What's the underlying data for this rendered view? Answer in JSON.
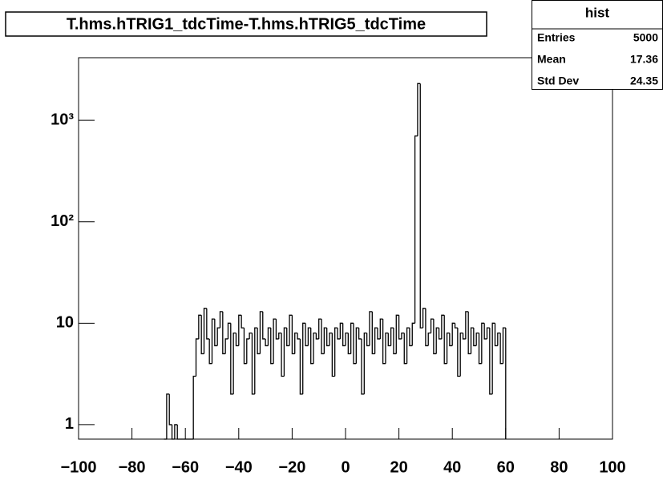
{
  "chart_data": {
    "type": "histogram",
    "title": "T.hms.hTRIG1_tdcTime-T.hms.hTRIG5_tdcTime",
    "bins": [
      -68,
      -67,
      -66,
      -65,
      -64,
      -63,
      -62,
      -61,
      -60,
      -59,
      -58,
      -57,
      -56,
      -55,
      -54,
      -53,
      -52,
      -51,
      -50,
      -49,
      -48,
      -47,
      -46,
      -45,
      -44,
      -43,
      -42,
      -41,
      -40,
      -39,
      -38,
      -37,
      -36,
      -35,
      -34,
      -33,
      -32,
      -31,
      -30,
      -29,
      -28,
      -27,
      -26,
      -25,
      -24,
      -23,
      -22,
      -21,
      -20,
      -19,
      -18,
      -17,
      -16,
      -15,
      -14,
      -13,
      -12,
      -11,
      -10,
      -9,
      -8,
      -7,
      -6,
      -5,
      -4,
      -3,
      -2,
      -1,
      0,
      1,
      2,
      3,
      4,
      5,
      6,
      7,
      8,
      9,
      10,
      11,
      12,
      13,
      14,
      15,
      16,
      17,
      18,
      19,
      20,
      21,
      22,
      23,
      24,
      25,
      26,
      27,
      28,
      29,
      30,
      31,
      32,
      33,
      34,
      35,
      36,
      37,
      38,
      39,
      40,
      41,
      42,
      43,
      44,
      45,
      46,
      47,
      48,
      49,
      50,
      51,
      52,
      53,
      54,
      55,
      56,
      57,
      58,
      59,
      60
    ],
    "values": [
      0,
      2,
      1,
      0,
      1,
      0,
      0,
      0,
      0,
      0,
      0,
      3,
      7,
      12,
      5,
      14,
      7,
      4,
      11,
      6,
      9,
      13,
      5,
      7,
      10,
      2,
      8,
      6,
      12,
      9,
      4,
      7,
      8,
      2,
      9,
      5,
      13,
      7,
      6,
      9,
      4,
      11,
      7,
      8,
      3,
      9,
      6,
      12,
      5,
      8,
      7,
      2,
      10,
      6,
      9,
      4,
      8,
      7,
      11,
      5,
      9,
      6,
      8,
      3,
      9,
      7,
      10,
      6,
      8,
      5,
      10,
      4,
      9,
      7,
      2,
      8,
      6,
      13,
      5,
      9,
      7,
      11,
      4,
      8,
      6,
      9,
      5,
      12,
      7,
      8,
      4,
      9,
      6,
      10,
      700,
      2300,
      9,
      14,
      6,
      8,
      11,
      5,
      9,
      7,
      12,
      4,
      8,
      6,
      10,
      9,
      3,
      8,
      7,
      13,
      5,
      9,
      6,
      8,
      4,
      10,
      7,
      9,
      2,
      10,
      6,
      8,
      4,
      9
    ],
    "color": "#000000",
    "xlim": [
      -100,
      100
    ],
    "ylim": [
      0.72,
      4140
    ],
    "log_y": true,
    "xticks": [
      {
        "value": -100,
        "label": "−100"
      },
      {
        "value": -80,
        "label": "−80"
      },
      {
        "value": -60,
        "label": "−60"
      },
      {
        "value": -40,
        "label": "−40"
      },
      {
        "value": -20,
        "label": "−20"
      },
      0,
      20,
      40,
      60,
      80,
      100
    ],
    "yticks": [
      1,
      10,
      {
        "value": 100,
        "label": "10²"
      },
      {
        "value": 1000,
        "label": "10³"
      }
    ],
    "stats": {
      "title": "hist",
      "rows": [
        {
          "label": "Entries",
          "value": "5000"
        },
        {
          "label": "Mean",
          "value": "17.36"
        },
        {
          "label": "Std Dev",
          "value": "24.35"
        }
      ]
    }
  }
}
